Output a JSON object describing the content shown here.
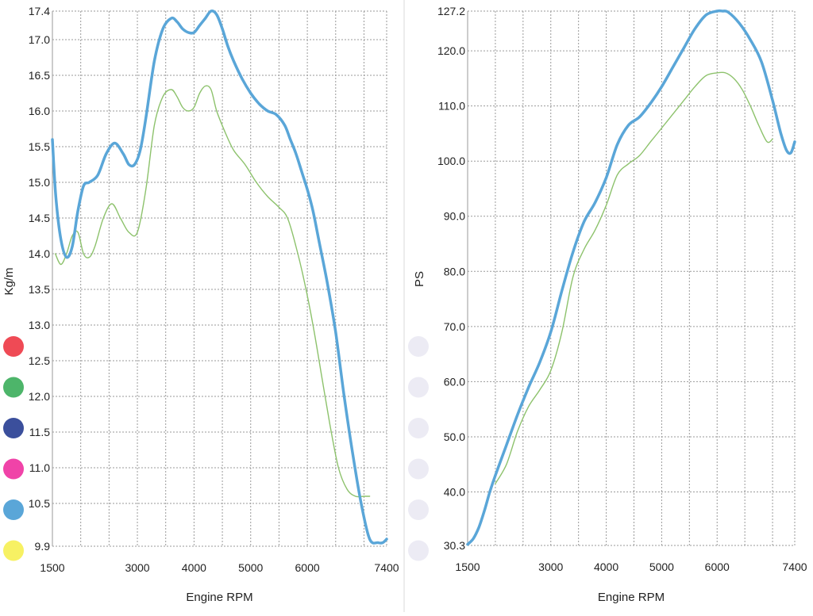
{
  "chart_data": [
    {
      "type": "line",
      "title": "",
      "xlabel": "Engine RPM",
      "ylabel": "Kg/m",
      "xlim": [
        1500,
        7400
      ],
      "ylim": [
        9.9,
        17.4
      ],
      "x_ticks": [
        1500,
        3000,
        4000,
        5000,
        6000,
        7400
      ],
      "x_tick_labels": [
        "1500",
        "3000",
        "4000",
        "5000",
        "6000",
        "7400"
      ],
      "x_gridlines": [
        2000,
        2500,
        3000,
        3500,
        4000,
        4500,
        5000,
        5500,
        6000,
        6500,
        7000
      ],
      "y_ticks": [
        9.9,
        10.5,
        11.0,
        11.5,
        12.0,
        12.5,
        13.0,
        13.5,
        14.0,
        14.5,
        15.0,
        15.5,
        16.0,
        16.5,
        17.0,
        17.4
      ],
      "y_tick_labels": [
        "9.9",
        "10.5",
        "11.0",
        "11.5",
        "12.0",
        "12.5",
        "13.0",
        "13.5",
        "14.0",
        "14.5",
        "15.0",
        "15.5",
        "16.0",
        "16.5",
        "17.0",
        "17.4"
      ],
      "grid": true,
      "series": [
        {
          "color": "#5aa6d8",
          "width": 3.5,
          "x": [
            1500,
            1560,
            1650,
            1750,
            1850,
            1950,
            2050,
            2150,
            2300,
            2450,
            2600,
            2750,
            2850,
            2950,
            3050,
            3150,
            3300,
            3450,
            3600,
            3700,
            3800,
            3900,
            4000,
            4100,
            4200,
            4300,
            4400,
            4500,
            4600,
            4700,
            4850,
            5000,
            5150,
            5300,
            5450,
            5600,
            5700,
            5800,
            5900,
            6000,
            6100,
            6200,
            6350,
            6500,
            6650,
            6800,
            6950,
            7100,
            7250,
            7330,
            7400
          ],
          "y": [
            15.6,
            14.8,
            14.2,
            13.95,
            14.1,
            14.6,
            14.95,
            15.0,
            15.1,
            15.4,
            15.55,
            15.4,
            15.25,
            15.25,
            15.45,
            15.9,
            16.7,
            17.15,
            17.3,
            17.25,
            17.15,
            17.1,
            17.1,
            17.2,
            17.3,
            17.4,
            17.35,
            17.15,
            16.9,
            16.7,
            16.45,
            16.25,
            16.1,
            16.0,
            15.95,
            15.8,
            15.6,
            15.4,
            15.15,
            14.9,
            14.6,
            14.2,
            13.6,
            12.9,
            12.0,
            11.2,
            10.5,
            10.0,
            9.95,
            9.95,
            10.0
          ]
        },
        {
          "color": "#8dc26c",
          "width": 1.4,
          "x": [
            1550,
            1650,
            1750,
            1850,
            1950,
            2050,
            2150,
            2250,
            2400,
            2550,
            2700,
            2850,
            3000,
            3150,
            3300,
            3450,
            3600,
            3700,
            3800,
            3900,
            4000,
            4100,
            4200,
            4300,
            4400,
            4550,
            4700,
            4900,
            5100,
            5300,
            5500,
            5650,
            5800,
            5950,
            6100,
            6250,
            6400,
            6550,
            6700,
            6850,
            7000,
            7100
          ],
          "y": [
            14.0,
            13.85,
            14.0,
            14.25,
            14.3,
            14.0,
            13.95,
            14.1,
            14.5,
            14.7,
            14.5,
            14.3,
            14.3,
            14.9,
            15.8,
            16.2,
            16.3,
            16.2,
            16.05,
            16.0,
            16.05,
            16.25,
            16.35,
            16.3,
            16.0,
            15.7,
            15.45,
            15.25,
            15.0,
            14.8,
            14.65,
            14.5,
            14.1,
            13.6,
            13.0,
            12.3,
            11.6,
            11.0,
            10.7,
            10.6,
            10.6,
            10.6
          ]
        }
      ],
      "legend": {
        "placement": "left",
        "colors": [
          "#ef4a55",
          "#4db56a",
          "#3b4f9c",
          "#f043a8",
          "#5aa6d8",
          "#f7f163"
        ]
      }
    },
    {
      "type": "line",
      "title": "",
      "xlabel": "Engine RPM",
      "ylabel": "PS",
      "xlim": [
        1500,
        7400
      ],
      "ylim": [
        30.3,
        127.2
      ],
      "x_ticks": [
        1500,
        3000,
        4000,
        5000,
        6000,
        7400
      ],
      "x_tick_labels": [
        "1500",
        "3000",
        "4000",
        "5000",
        "6000",
        "7400"
      ],
      "x_gridlines": [
        2000,
        2500,
        3000,
        3500,
        4000,
        4500,
        5000,
        5500,
        6000,
        6500,
        7000
      ],
      "y_ticks": [
        30.3,
        40.0,
        50.0,
        60.0,
        70.0,
        80.0,
        90.0,
        100.0,
        110.0,
        120.0,
        127.2
      ],
      "y_tick_labels": [
        "30.3",
        "40.0",
        "50.0",
        "60.0",
        "70.0",
        "80.0",
        "90.0",
        "100.0",
        "110.0",
        "120.0",
        "127.2"
      ],
      "grid": true,
      "series": [
        {
          "color": "#5aa6d8",
          "width": 3.5,
          "x": [
            1500,
            1600,
            1700,
            1800,
            1900,
            2000,
            2200,
            2400,
            2600,
            2800,
            3000,
            3200,
            3400,
            3600,
            3800,
            4000,
            4200,
            4400,
            4600,
            4800,
            5000,
            5200,
            5400,
            5600,
            5800,
            6000,
            6100,
            6200,
            6400,
            6600,
            6800,
            7000,
            7150,
            7250,
            7330,
            7400
          ],
          "y": [
            30.5,
            31.5,
            33.5,
            36.5,
            40.0,
            43.0,
            48.5,
            54.0,
            59.0,
            63.5,
            69.0,
            76.5,
            83.5,
            89.0,
            92.5,
            97.0,
            103.0,
            106.5,
            108.0,
            110.5,
            113.5,
            117.0,
            120.5,
            124.0,
            126.5,
            127.2,
            127.2,
            127.0,
            125.0,
            122.0,
            118.0,
            111.0,
            105.0,
            102.0,
            101.5,
            103.5
          ]
        },
        {
          "color": "#8dc26c",
          "width": 1.4,
          "x": [
            2000,
            2200,
            2400,
            2600,
            2800,
            3000,
            3200,
            3400,
            3600,
            3800,
            4000,
            4200,
            4400,
            4600,
            4800,
            5000,
            5200,
            5400,
            5600,
            5800,
            6000,
            6150,
            6300,
            6450,
            6600,
            6750,
            6900,
            7000
          ],
          "y": [
            41.5,
            45.0,
            51.0,
            55.5,
            58.5,
            62.0,
            69.0,
            79.0,
            84.0,
            87.5,
            92.0,
            97.5,
            99.5,
            101.0,
            103.5,
            106.0,
            108.5,
            111.0,
            113.5,
            115.5,
            116.0,
            116.0,
            115.0,
            113.0,
            110.0,
            106.5,
            103.5,
            104.0
          ]
        }
      ],
      "legend": {
        "placement": "left",
        "colors": [
          "#ecebf4",
          "#ecebf4",
          "#ecebf4",
          "#ecebf4",
          "#ecebf4",
          "#ecebf4"
        ]
      }
    }
  ]
}
